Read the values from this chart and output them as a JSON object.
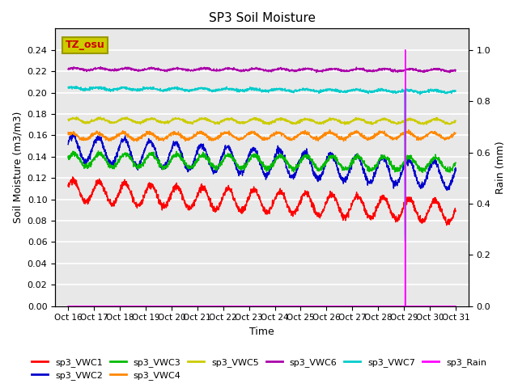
{
  "title": "SP3 Soil Moisture",
  "xlabel": "Time",
  "ylabel_left": "Soil Moisture (m3/m3)",
  "ylabel_right": "Rain (mm)",
  "xlim_days": [
    15.5,
    31.5
  ],
  "ylim_left": [
    0.0,
    0.26
  ],
  "ylim_right": [
    0.0,
    1.0833
  ],
  "x_ticks_labels": [
    "Oct 16",
    "Oct 17",
    "Oct 18",
    "Oct 19",
    "Oct 20",
    "Oct 21",
    "Oct 22",
    "Oct 23",
    "Oct 24",
    "Oct 25",
    "Oct 26",
    "Oct 27",
    "Oct 28",
    "Oct 29",
    "Oct 30",
    "Oct 31"
  ],
  "x_ticks_days": [
    16,
    17,
    18,
    19,
    20,
    21,
    22,
    23,
    24,
    25,
    26,
    27,
    28,
    29,
    30,
    31
  ],
  "annotation_label": "TZ_osu",
  "annotation_color": "#cccc00",
  "annotation_text_color": "#cc0000",
  "colors": {
    "VWC1": "#ff0000",
    "VWC2": "#0000cc",
    "VWC3": "#00bb00",
    "VWC4": "#ff8800",
    "VWC5": "#cccc00",
    "VWC6": "#aa00aa",
    "VWC7": "#00cccc",
    "Rain": "#ff00ff"
  },
  "bg_color": "#e8e8e8",
  "grid_color": "#ffffff",
  "spike_day": 29.05
}
